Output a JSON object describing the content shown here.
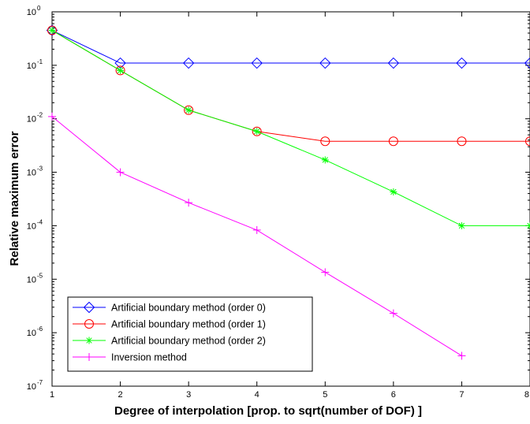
{
  "chart_data": {
    "type": "line",
    "title": "",
    "xlabel": "Degree of interpolation [prop. to sqrt(number of DOF) ]",
    "ylabel": "Relative maximum error",
    "xlim": [
      1,
      8
    ],
    "ylim": [
      1e-07,
      1
    ],
    "yscale": "log",
    "grid": false,
    "legend_position": "bottom-left",
    "x_ticks": [
      "1",
      "2",
      "3",
      "4",
      "5",
      "6",
      "7",
      "8"
    ],
    "y_ticks": [
      {
        "base": "10",
        "exp": "0",
        "value": 1
      },
      {
        "base": "10",
        "exp": "-1",
        "value": 0.1
      },
      {
        "base": "10",
        "exp": "-2",
        "value": 0.01
      },
      {
        "base": "10",
        "exp": "-3",
        "value": 0.001
      },
      {
        "base": "10",
        "exp": "-4",
        "value": 0.0001
      },
      {
        "base": "10",
        "exp": "-5",
        "value": 1e-05
      },
      {
        "base": "10",
        "exp": "-6",
        "value": 1e-06
      },
      {
        "base": "10",
        "exp": "-7",
        "value": 1e-07
      }
    ],
    "series": [
      {
        "name": "Artificial boundary method (order 0)",
        "color": "#0000ff",
        "marker": "diamond",
        "x": [
          1,
          2,
          3,
          4,
          5,
          6,
          7,
          8
        ],
        "y": [
          0.45,
          0.11,
          0.11,
          0.11,
          0.11,
          0.11,
          0.11,
          0.11
        ]
      },
      {
        "name": "Artificial boundary method (order 1)",
        "color": "#ff0000",
        "marker": "circle",
        "x": [
          1,
          2,
          3,
          4,
          5,
          6,
          7,
          8
        ],
        "y": [
          0.45,
          0.08,
          0.0145,
          0.0058,
          0.0038,
          0.0038,
          0.0038,
          0.0038
        ]
      },
      {
        "name": "Artificial boundary method (order 2)",
        "color": "#00ff00",
        "marker": "star",
        "x": [
          1,
          2,
          3,
          4,
          5,
          6,
          7,
          8
        ],
        "y": [
          0.45,
          0.08,
          0.0145,
          0.0058,
          0.0017,
          0.00043,
          0.0001,
          0.0001
        ]
      },
      {
        "name": "Inversion method",
        "color": "#ff00ff",
        "marker": "plus",
        "x": [
          1,
          2,
          3,
          4,
          5,
          6,
          7
        ],
        "y": [
          0.011,
          0.001,
          0.00027,
          8.3e-05,
          1.35e-05,
          2.3e-06,
          3.7e-07
        ]
      }
    ]
  }
}
